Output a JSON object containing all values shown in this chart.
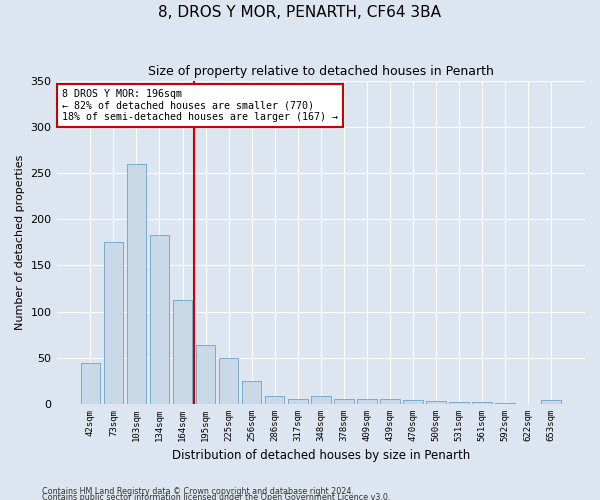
{
  "title": "8, DROS Y MOR, PENARTH, CF64 3BA",
  "subtitle": "Size of property relative to detached houses in Penarth",
  "xlabel": "Distribution of detached houses by size in Penarth",
  "ylabel": "Number of detached properties",
  "categories": [
    "42sqm",
    "73sqm",
    "103sqm",
    "134sqm",
    "164sqm",
    "195sqm",
    "225sqm",
    "256sqm",
    "286sqm",
    "317sqm",
    "348sqm",
    "378sqm",
    "409sqm",
    "439sqm",
    "470sqm",
    "500sqm",
    "531sqm",
    "561sqm",
    "592sqm",
    "622sqm",
    "653sqm"
  ],
  "values": [
    44,
    175,
    260,
    183,
    113,
    64,
    50,
    25,
    9,
    5,
    9,
    5,
    6,
    5,
    4,
    3,
    2,
    2,
    1,
    0,
    4
  ],
  "bar_color": "#c9d9e8",
  "bar_edge_color": "#6aa3c8",
  "marker_index": 5,
  "annotation_text": "8 DROS Y MOR: 196sqm\n← 82% of detached houses are smaller (770)\n18% of semi-detached houses are larger (167) →",
  "annotation_box_color": "#ffffff",
  "annotation_box_edge_color": "#cc0000",
  "vline_color": "#cc0000",
  "footer1": "Contains HM Land Registry data © Crown copyright and database right 2024.",
  "footer2": "Contains public sector information licensed under the Open Government Licence v3.0.",
  "background_color": "#dde6f0",
  "plot_background_color": "#dde6f0",
  "grid_color": "#ffffff",
  "ylim": [
    0,
    350
  ],
  "yticks": [
    0,
    50,
    100,
    150,
    200,
    250,
    300,
    350
  ],
  "title_fontsize": 11,
  "subtitle_fontsize": 9
}
